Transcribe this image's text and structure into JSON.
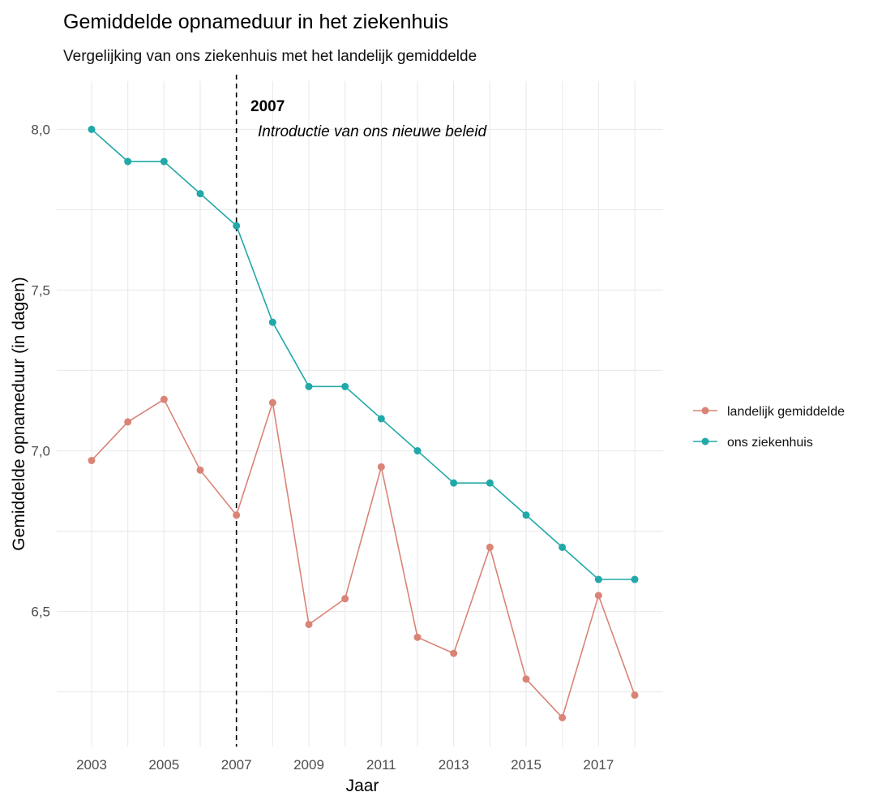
{
  "chart_data": {
    "type": "line",
    "title": "Gemiddelde opnameduur in het ziekenhuis",
    "subtitle": "Vergelijking van ons ziekenhuis met het landelijk gemiddelde",
    "xlabel": "Jaar",
    "ylabel": "Gemiddelde opnameduur (in dagen)",
    "x": [
      2003,
      2004,
      2005,
      2006,
      2007,
      2008,
      2009,
      2010,
      2011,
      2012,
      2013,
      2014,
      2015,
      2016,
      2017,
      2018
    ],
    "xticks": [
      "2003",
      "2005",
      "2007",
      "2009",
      "2011",
      "2013",
      "2015",
      "2017"
    ],
    "yticks": [
      "6,5",
      "7,0",
      "7,5",
      "8,0"
    ],
    "ylim": [
      6.08,
      8.15
    ],
    "grid": true,
    "legend_position": "right",
    "series": [
      {
        "name": "landelijk gemiddelde",
        "color": "#d98477",
        "values": [
          6.97,
          7.09,
          7.16,
          6.94,
          6.8,
          7.15,
          6.46,
          6.54,
          6.95,
          6.42,
          6.37,
          6.7,
          6.29,
          6.17,
          6.55,
          6.24
        ]
      },
      {
        "name": "ons ziekenhuis",
        "color": "#22a8a8",
        "values": [
          8.0,
          7.9,
          7.9,
          7.8,
          7.7,
          7.4,
          7.2,
          7.2,
          7.1,
          7.0,
          6.9,
          6.9,
          6.8,
          6.7,
          6.6,
          6.6
        ]
      }
    ],
    "annotation": {
      "x": 2007,
      "label": "2007",
      "text": "Introductie van ons nieuwe beleid"
    }
  }
}
